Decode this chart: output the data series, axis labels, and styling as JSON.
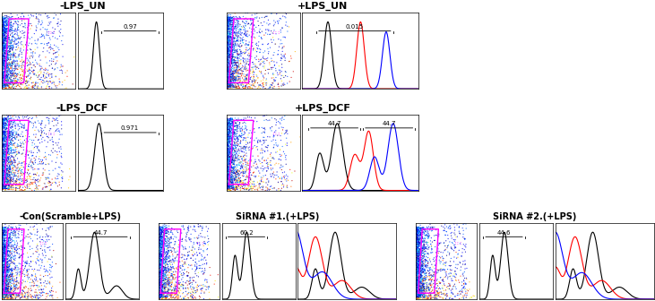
{
  "title_row1_left": "-LPS_UN",
  "title_row1_right": "+LPS_UN",
  "title_row2_left": "-LPS_DCF",
  "title_row2_right": "+LPS_DCF",
  "title_row3_left": "-Con(Scramble+LPS)",
  "title_row3_mid": "SiRNA #1.(+LPS)",
  "title_row3_right": "SiRNA #2.(+LPS)",
  "ann_r1_left": "0.97",
  "ann_r1_right": "0.015",
  "ann_r2_left": "0.971",
  "ann_r2_right_1": "44.7",
  "ann_r2_right_2": "44.7",
  "ann_r3_left": "44.7",
  "ann_r3_mid": "60.2",
  "ann_r3_right": "44.6",
  "bg_color": "#ffffff",
  "line_black": "#000000",
  "line_red": "#ff0000",
  "line_blue": "#0000ff",
  "magenta": "#ff00ff",
  "title_fontsize": 8,
  "ann_fontsize": 5
}
